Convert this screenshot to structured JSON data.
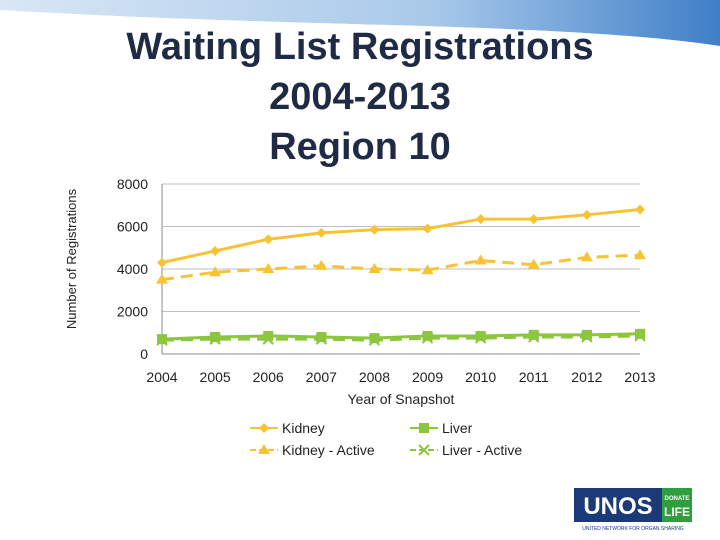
{
  "slide": {
    "title_lines": [
      "Waiting List Registrations",
      "2004-2013",
      "Region 10"
    ]
  },
  "logo": {
    "main_text": "UNOS",
    "badge_line1": "DONATE",
    "badge_line2": "LIFE",
    "tagline": "UNITED NETWORK FOR ORGAN SHARING",
    "primary_color": "#1d3a78",
    "accent_color": "#2e9e3f"
  },
  "chart_data": {
    "type": "line",
    "title": "",
    "xlabel": "Year of Snapshot",
    "ylabel": "Number of Registrations",
    "categories": [
      "2004",
      "2005",
      "2006",
      "2007",
      "2008",
      "2009",
      "2010",
      "2011",
      "2012",
      "2013"
    ],
    "ylim": [
      0,
      8000
    ],
    "yticks": [
      "0",
      "2000",
      "4000",
      "6000",
      "8000"
    ],
    "grid": true,
    "legend_position": "bottom",
    "series": [
      {
        "name": "Kidney",
        "values": [
          4300,
          4850,
          5400,
          5700,
          5850,
          5900,
          6350,
          6350,
          6550,
          6800
        ],
        "color": "#f7c335",
        "marker": "diamond",
        "dashed": false
      },
      {
        "name": "Kidney - Active",
        "values": [
          3500,
          3850,
          4000,
          4150,
          4000,
          3950,
          4400,
          4200,
          4550,
          4650
        ],
        "color": "#f7c335",
        "marker": "triangle",
        "dashed": true
      },
      {
        "name": "Liver",
        "values": [
          700,
          800,
          850,
          800,
          750,
          850,
          850,
          900,
          900,
          950
        ],
        "color": "#8cc63f",
        "marker": "square",
        "dashed": false
      },
      {
        "name": "Liver - Active",
        "values": [
          650,
          700,
          700,
          700,
          650,
          750,
          750,
          800,
          800,
          850
        ],
        "color": "#8cc63f",
        "marker": "x",
        "dashed": true
      }
    ]
  }
}
